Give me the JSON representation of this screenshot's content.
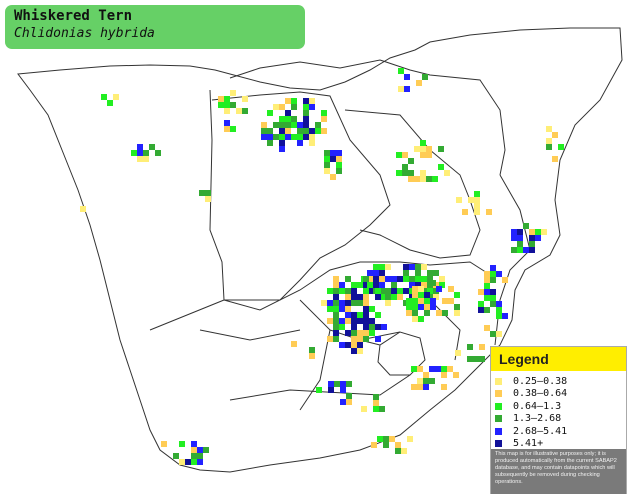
{
  "species": {
    "common_name": "Whiskered Tern",
    "scientific_name": "Chlidonias hybrida"
  },
  "legend": {
    "title": "Legend",
    "items": [
      {
        "label": "0.25–0.38",
        "color": "#ffee77"
      },
      {
        "label": "0.38–0.64",
        "color": "#ffcc55"
      },
      {
        "label": "0.64–1.3",
        "color": "#22ee22"
      },
      {
        "label": "1.3–2.68",
        "color": "#33aa33"
      },
      {
        "label": "2.68–5.41",
        "color": "#2222ff"
      },
      {
        "label": "5.41+",
        "color": "#111199"
      }
    ],
    "note": "This map is for illustrative purposes only; it is produced automatically from the current SABAP2 database, and may contain datapoints which will subsequently be removed during checking operations."
  },
  "colors": {
    "title_bg": "#66d066",
    "legend_header_bg": "#ffee00",
    "border_line": "#333333"
  }
}
